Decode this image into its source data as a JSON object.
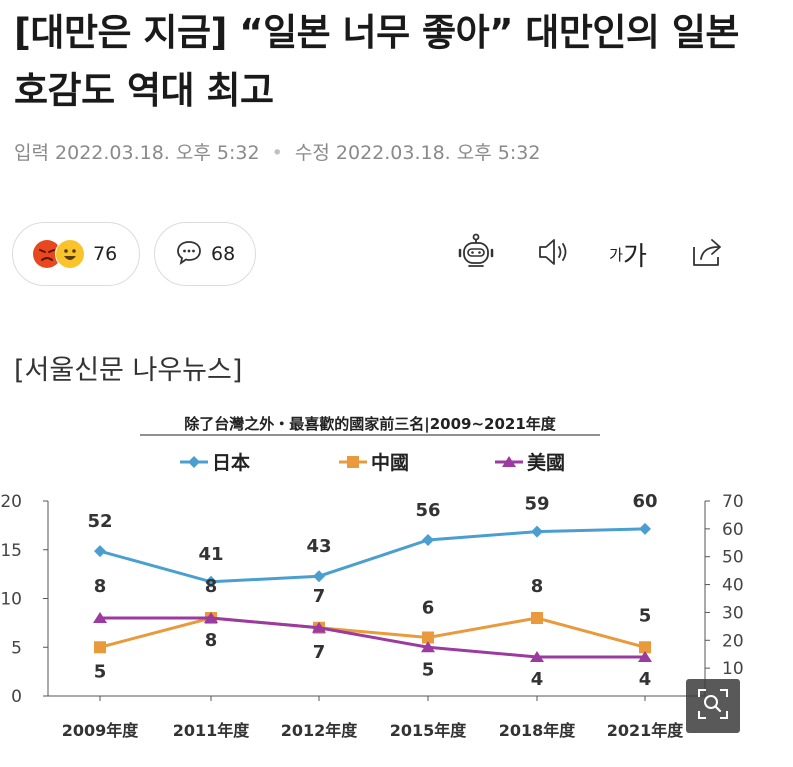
{
  "article": {
    "headline": "[대만은 지금] “일본 너무 좋아” 대만인의 일본 호감도 역대 최고",
    "published_label": "입력",
    "published": "2022.03.18. 오후 5:32",
    "modified_label": "수정",
    "modified": "2022.03.18. 오후 5:32",
    "source": "[서울신문 나우뉴스]"
  },
  "actions": {
    "reactions_count": "76",
    "comments_count": "68",
    "font_size_label_small": "가",
    "font_size_label_large": "가"
  },
  "colors": {
    "japan": "#4a9fd0",
    "china": "#e89a3c",
    "usa": "#9b3aa0",
    "axis": "#555555"
  },
  "chart_data": {
    "type": "line",
    "title": "除了台灣之外・最喜歡的國家前三名|2009~2021年度",
    "categories": [
      "2009年度",
      "2011年度",
      "2012年度",
      "2015年度",
      "2018年度",
      "2021年度"
    ],
    "series": [
      {
        "name": "日本",
        "axis": "right",
        "values": [
          52,
          41,
          43,
          56,
          59,
          60
        ],
        "labels": [
          "52",
          "41",
          "43",
          "56",
          "59",
          "60"
        ]
      },
      {
        "name": "中國",
        "axis": "left",
        "values": [
          5,
          8,
          7,
          6,
          8,
          5
        ],
        "labels": [
          "5",
          "8",
          "7",
          "6",
          "8",
          "5"
        ]
      },
      {
        "name": "美國",
        "axis": "left",
        "values": [
          8,
          8,
          7,
          5,
          4,
          4
        ],
        "labels": [
          "8",
          "8",
          "7",
          "5",
          "4",
          "4"
        ]
      }
    ],
    "y_left": {
      "ticks": [
        "0",
        "5",
        "10",
        "15",
        "20"
      ],
      "range": [
        0,
        20
      ]
    },
    "y_right": {
      "ticks": [
        "10",
        "20",
        "30",
        "40",
        "50",
        "60",
        "70"
      ],
      "range": [
        0,
        70
      ]
    }
  }
}
